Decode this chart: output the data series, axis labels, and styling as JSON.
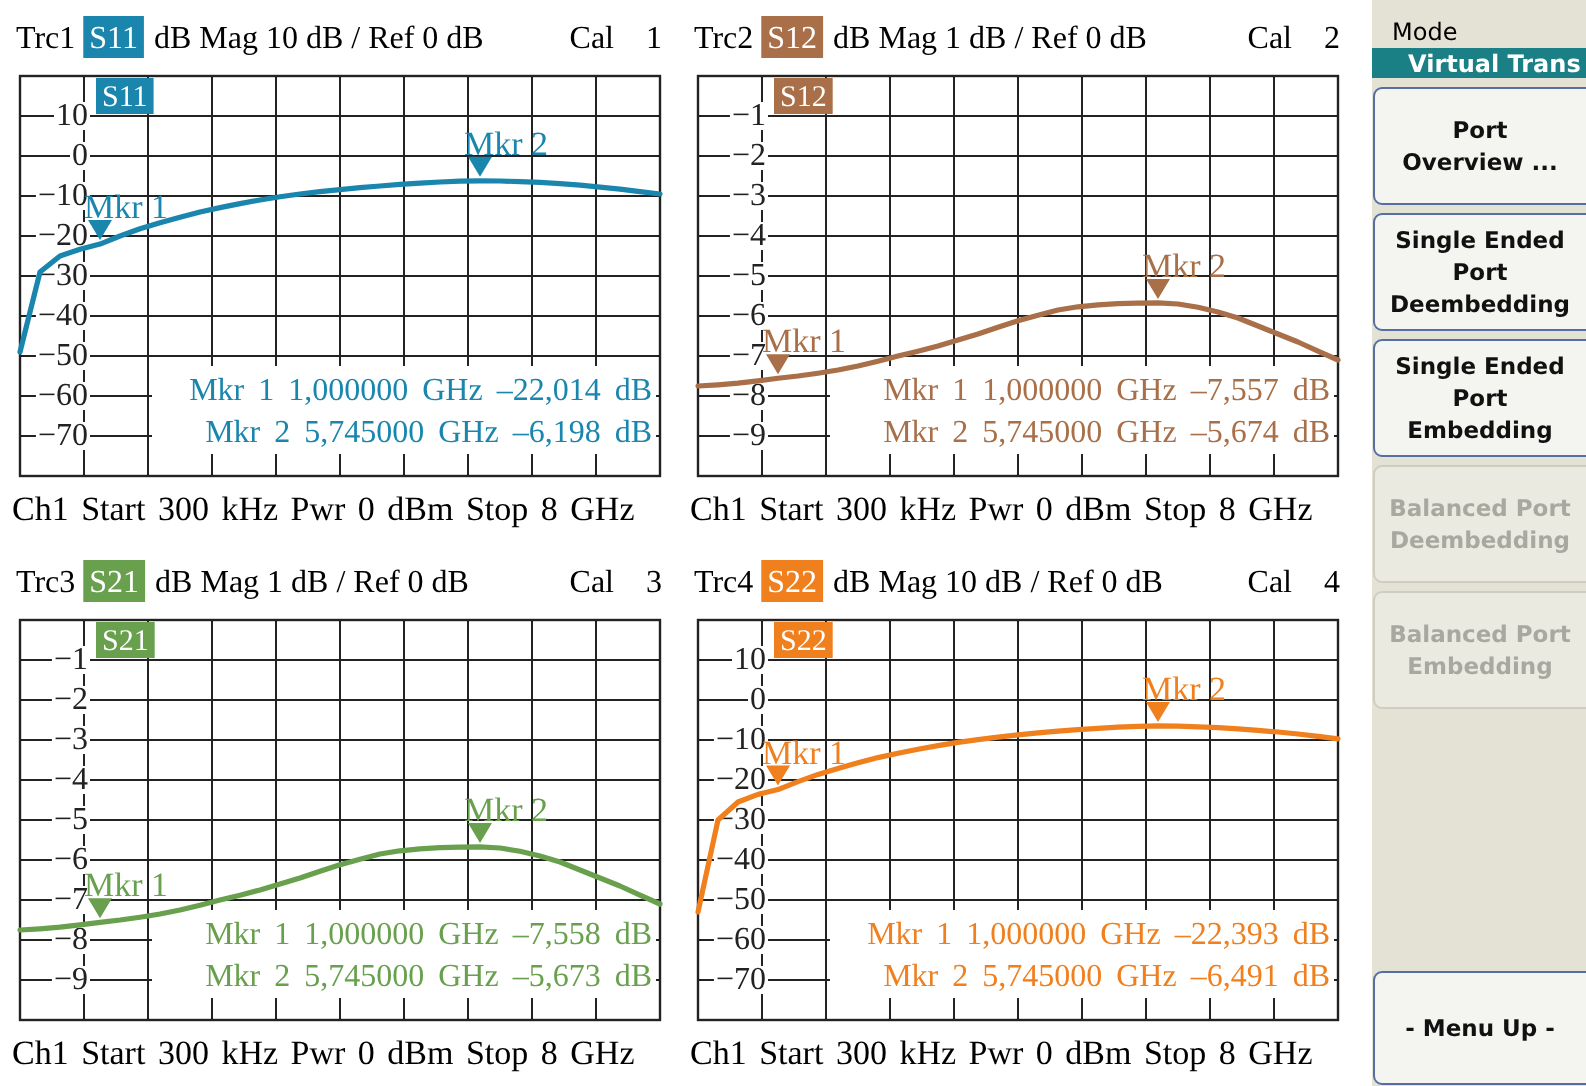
{
  "chart_data": [
    {
      "type": "line",
      "title": "Trc1",
      "subtitle": "dB Mag 10 dB / Ref 0 dB",
      "xlabel": "Ch1 Start 300 kHz Pwr 0 dBm Stop 8 GHz",
      "categories": [
        null,
        null,
        null,
        null,
        null,
        null,
        null,
        null,
        null,
        null,
        null,
        null,
        null,
        null,
        null,
        null,
        null,
        null,
        null,
        null,
        null,
        null,
        null,
        null,
        null,
        null,
        null,
        null,
        null,
        null,
        null,
        null,
        null
      ],
      "ylim": [
        -80,
        20
      ],
      "yticks": [
        10,
        0,
        -10,
        -20,
        -30,
        -40,
        -50,
        -60,
        -70
      ],
      "tick_labels": "y",
      "grid": true,
      "legend": "top left",
      "series": [
        {
          "name": "S11",
          "color": "#1a86ae",
          "values": [
            -49,
            -29,
            -25,
            -23.3,
            -22.014,
            -20,
            -18.2,
            -16.7,
            -15.3,
            -14,
            -12.9,
            -11.9,
            -11,
            -10.2,
            -9.5,
            -8.9,
            -8.4,
            -7.9,
            -7.5,
            -7.1,
            -6.8,
            -6.5,
            -6.3,
            -6.198,
            -6.25,
            -6.4,
            -6.6,
            -6.9,
            -7.3,
            -7.8,
            -8.3,
            -8.9,
            -9.5
          ]
        }
      ],
      "annotations": [
        "Cal",
        "1",
        {
          "text": "Mkr 1",
          "y": -22.014
        },
        {
          "text": "Mkr 2",
          "y": -6.198
        },
        "Mkr 1 1,000000 GHz –22,014 dB",
        "Mkr 2 5,745000 GHz –6,198 dB"
      ]
    },
    {
      "type": "line",
      "title": "Trc2",
      "subtitle": "dB Mag 1 dB / Ref 0 dB",
      "xlabel": "Ch1 Start 300 kHz Pwr 0 dBm Stop 8 GHz",
      "categories": [
        null,
        null,
        null,
        null,
        null,
        null,
        null,
        null,
        null,
        null,
        null,
        null,
        null,
        null,
        null,
        null,
        null,
        null,
        null,
        null,
        null,
        null,
        null,
        null,
        null,
        null,
        null,
        null,
        null,
        null,
        null,
        null,
        null
      ],
      "ylim": [
        -10,
        0
      ],
      "yticks": [
        -1,
        -2,
        -3,
        -4,
        -5,
        -6,
        -7,
        -8,
        -9
      ],
      "tick_labels": "y",
      "grid": true,
      "legend": "top left",
      "series": [
        {
          "name": "S12",
          "color": "#a86f48",
          "values": [
            -7.75,
            -7.72,
            -7.68,
            -7.62,
            -7.557,
            -7.5,
            -7.43,
            -7.35,
            -7.25,
            -7.13,
            -7.0,
            -6.88,
            -6.75,
            -6.6,
            -6.45,
            -6.28,
            -6.12,
            -5.98,
            -5.85,
            -5.77,
            -5.72,
            -5.69,
            -5.68,
            -5.674,
            -5.7,
            -5.78,
            -5.9,
            -6.05,
            -6.25,
            -6.45,
            -6.65,
            -6.88,
            -7.1
          ]
        }
      ],
      "annotations": [
        "Cal",
        "2",
        {
          "text": "Mkr 1",
          "y": -7.557
        },
        {
          "text": "Mkr 2",
          "y": -5.674
        },
        "Mkr 1 1,000000 GHz –7,557 dB",
        "Mkr 2 5,745000 GHz –5,674 dB"
      ]
    },
    {
      "type": "line",
      "title": "Trc3",
      "subtitle": "dB Mag 1 dB / Ref 0 dB",
      "xlabel": "Ch1 Start 300 kHz Pwr 0 dBm Stop 8 GHz",
      "categories": [
        null,
        null,
        null,
        null,
        null,
        null,
        null,
        null,
        null,
        null,
        null,
        null,
        null,
        null,
        null,
        null,
        null,
        null,
        null,
        null,
        null,
        null,
        null,
        null,
        null,
        null,
        null,
        null,
        null,
        null,
        null,
        null,
        null
      ],
      "ylim": [
        -10,
        0
      ],
      "yticks": [
        -1,
        -2,
        -3,
        -4,
        -5,
        -6,
        -7,
        -8,
        -9
      ],
      "tick_labels": "y",
      "grid": true,
      "legend": "top left",
      "series": [
        {
          "name": "S21",
          "color": "#68a04e",
          "values": [
            -7.75,
            -7.72,
            -7.68,
            -7.62,
            -7.558,
            -7.5,
            -7.43,
            -7.35,
            -7.25,
            -7.13,
            -7.0,
            -6.88,
            -6.75,
            -6.6,
            -6.45,
            -6.28,
            -6.12,
            -5.98,
            -5.85,
            -5.77,
            -5.72,
            -5.69,
            -5.68,
            -5.673,
            -5.7,
            -5.78,
            -5.9,
            -6.05,
            -6.25,
            -6.45,
            -6.65,
            -6.88,
            -7.1
          ]
        }
      ],
      "annotations": [
        "Cal",
        "3",
        {
          "text": "Mkr 1",
          "y": -7.558
        },
        {
          "text": "Mkr 2",
          "y": -5.673
        },
        "Mkr 1 1,000000 GHz –7,558 dB",
        "Mkr 2 5,745000 GHz –5,673 dB"
      ]
    },
    {
      "type": "line",
      "title": "Trc4",
      "subtitle": "dB Mag 10 dB / Ref 0 dB",
      "xlabel": "Ch1 Start 300 kHz Pwr 0 dBm Stop 8 GHz",
      "categories": [
        null,
        null,
        null,
        null,
        null,
        null,
        null,
        null,
        null,
        null,
        null,
        null,
        null,
        null,
        null,
        null,
        null,
        null,
        null,
        null,
        null,
        null,
        null,
        null,
        null,
        null,
        null,
        null,
        null,
        null,
        null,
        null,
        null
      ],
      "ylim": [
        -80,
        20
      ],
      "yticks": [
        10,
        0,
        -10,
        -20,
        -30,
        -40,
        -50,
        -60,
        -70
      ],
      "tick_labels": "y",
      "grid": true,
      "legend": "top left",
      "series": [
        {
          "name": "S22",
          "color": "#f07f1e",
          "values": [
            -53,
            -30,
            -25.5,
            -23.6,
            -22.393,
            -20.4,
            -18.6,
            -17.1,
            -15.7,
            -14.4,
            -13.3,
            -12.3,
            -11.4,
            -10.6,
            -9.9,
            -9.3,
            -8.7,
            -8.2,
            -7.8,
            -7.4,
            -7.1,
            -6.8,
            -6.6,
            -6.491,
            -6.55,
            -6.7,
            -6.9,
            -7.2,
            -7.6,
            -8,
            -8.5,
            -9.1,
            -9.7
          ]
        }
      ],
      "annotations": [
        "Cal",
        "4",
        {
          "text": "Mkr 1",
          "y": -22.393
        },
        {
          "text": "Mkr 2",
          "y": -6.491
        },
        "Mkr 1 1,000000 GHz –22,393 dB",
        "Mkr 2 5,745000 GHz –6,491 dB"
      ]
    },
    {
      "type": "other",
      "title": "Mode",
      "annotations": [
        "Virtual Trans",
        "Port Overview ...",
        "Single Ended Port Deembedding",
        "Single Ended Port Embedding",
        "Balanced Port Deembedding",
        "Balanced Port Embedding",
        "- Menu Up -"
      ]
    }
  ]
}
